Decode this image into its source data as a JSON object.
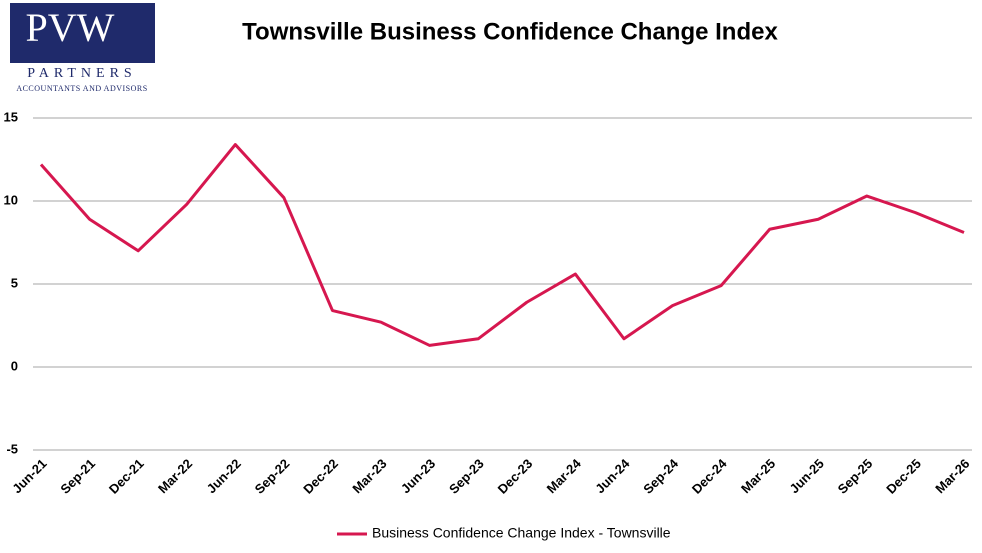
{
  "logo": {
    "mark": "PVW",
    "name": "PARTNERS",
    "tagline": "ACCOUNTANTS AND ADVISORS"
  },
  "chart_data": {
    "type": "line",
    "title": "Townsville Business Confidence Change Index",
    "categories": [
      "Jun-21",
      "Sep-21",
      "Dec-21",
      "Mar-22",
      "Jun-22",
      "Sep-22",
      "Dec-22",
      "Mar-23",
      "Jun-23",
      "Sep-23",
      "Dec-23",
      "Mar-24",
      "Jun-24",
      "Sep-24",
      "Dec-24",
      "Mar-25",
      "Jun-25",
      "Sep-25",
      "Dec-25",
      "Mar-26"
    ],
    "series": [
      {
        "name": "Business Confidence Change Index - Townsville",
        "color": "#d6174f",
        "values": [
          12.2,
          8.9,
          7.0,
          9.8,
          13.4,
          10.2,
          3.4,
          2.7,
          1.3,
          1.7,
          3.9,
          5.6,
          1.7,
          3.7,
          4.9,
          8.3,
          8.9,
          10.3,
          9.3,
          8.1
        ]
      }
    ],
    "ylim": [
      -5,
      15
    ],
    "yticks": [
      -5,
      0,
      5,
      10,
      15
    ],
    "grid": true,
    "legend": "bottom"
  }
}
